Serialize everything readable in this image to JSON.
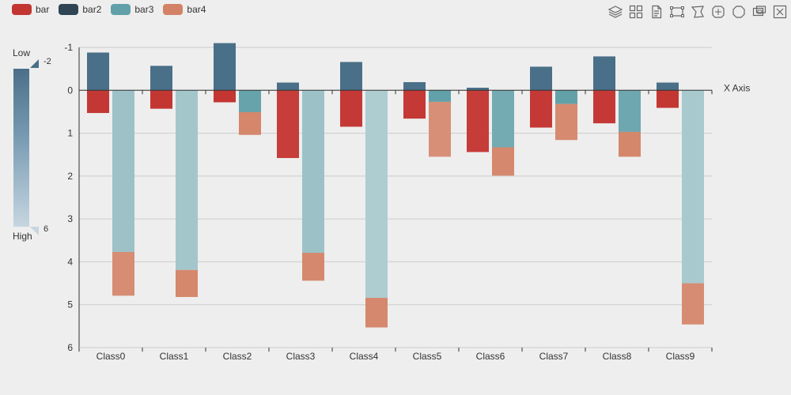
{
  "legend": [
    {
      "name": "bar",
      "color": "#c23531"
    },
    {
      "name": "bar2",
      "color": "#2f4554"
    },
    {
      "name": "bar3",
      "color": "#61a0a8"
    },
    {
      "name": "bar4",
      "color": "#d48265"
    }
  ],
  "toolbox": [
    "layers-icon",
    "grid-icon",
    "document-icon",
    "rect-select-icon",
    "lasso-select-icon",
    "keep-select-icon",
    "clear-select-icon",
    "zoom-icon",
    "zoom-reset-icon"
  ],
  "visual_map": {
    "low_label": "Low",
    "high_label": "High",
    "max_value": "-2",
    "min_value": "6",
    "colors": [
      "#4a6f88",
      "#c6d6e0"
    ]
  },
  "chart_data": {
    "type": "bar",
    "xlabel": "X Axis",
    "categories": [
      "Class0",
      "Class1",
      "Class2",
      "Class3",
      "Class4",
      "Class5",
      "Class6",
      "Class7",
      "Class8",
      "Class9"
    ],
    "yticks": [
      -1,
      0,
      1,
      2,
      3,
      4,
      5,
      6
    ],
    "ylim": [
      -1,
      6
    ],
    "y_inverse": true,
    "series": [
      {
        "name": "bar",
        "color": "#c23531",
        "stack": "one",
        "values": [
          0.53,
          0.43,
          0.28,
          1.58,
          0.85,
          0.66,
          1.44,
          0.87,
          0.77,
          0.41
        ]
      },
      {
        "name": "bar2",
        "color": "#2f4554",
        "stack": "one",
        "values": [
          -0.88,
          -0.57,
          -1.1,
          -0.18,
          -0.66,
          -0.19,
          -0.06,
          -0.55,
          -0.79,
          -0.18
        ]
      },
      {
        "name": "bar3",
        "color": "#61a0a8",
        "stack": "two",
        "values": [
          3.77,
          4.19,
          0.51,
          3.79,
          4.84,
          0.27,
          1.33,
          0.32,
          0.97,
          4.5
        ]
      },
      {
        "name": "bar4",
        "color": "#d48265",
        "stack": "two",
        "values": [
          1.02,
          0.63,
          0.53,
          0.65,
          0.69,
          1.28,
          0.66,
          0.84,
          0.58,
          0.96
        ]
      }
    ]
  }
}
